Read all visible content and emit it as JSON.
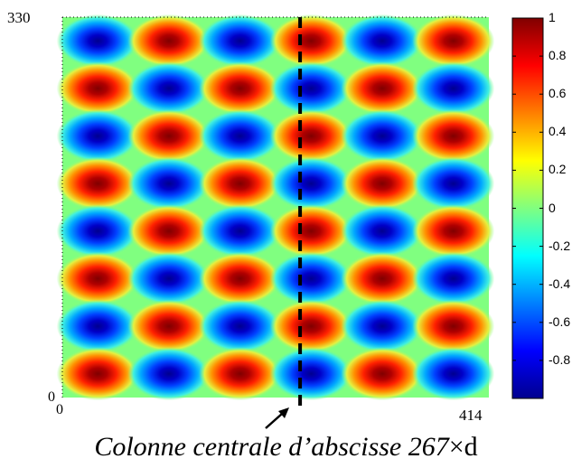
{
  "chart_data": {
    "type": "heatmap",
    "title": "",
    "x_range": [
      0,
      414
    ],
    "y_range": [
      0,
      330
    ],
    "x_tick_labels": [
      "0",
      "414"
    ],
    "y_tick_labels": [
      "0",
      "330"
    ],
    "grid": {
      "columns": 6,
      "rows": 8,
      "top_left_sign": "negative",
      "pattern": "checkerboard"
    },
    "value_range": [
      -1,
      1
    ],
    "colormap": "jet",
    "colorbar": {
      "ticks": [
        1,
        0.8,
        0.6,
        0.4,
        0.2,
        0,
        -0.2,
        -0.4,
        -0.6,
        -0.8
      ],
      "tick_labels": [
        "1",
        "0.8",
        "0.6",
        "0.4",
        "0.2",
        "0",
        "-0.2",
        "-0.4",
        "-0.6",
        "-0.8"
      ],
      "placement": "right"
    },
    "annotation": {
      "marker": "vertical dashed line",
      "x_value": 267,
      "caption_italic": "Colonne centrale d’abscisse 267",
      "caption_suffix": "×d"
    }
  }
}
